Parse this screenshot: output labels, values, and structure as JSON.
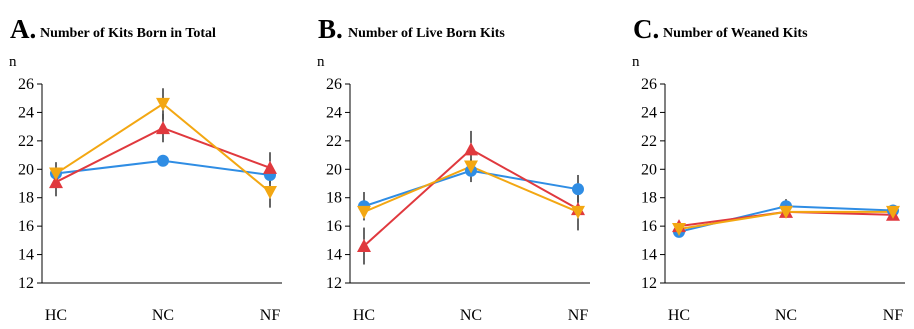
{
  "chart_data": [
    {
      "type": "line",
      "panel_letter": "A.",
      "title": "Number of Kits Born in Total",
      "ylabel": "n",
      "categories": [
        "HC",
        "NC",
        "NF"
      ],
      "yticks": [
        "12",
        "14",
        "16",
        "18",
        "20",
        "22",
        "24",
        "26"
      ],
      "ylim": [
        12,
        26
      ],
      "grid": false,
      "series": [
        {
          "marker": "circle",
          "color": "#2f8de4",
          "values": [
            19.7,
            20.6,
            19.6
          ]
        },
        {
          "marker": "triangle-up",
          "color": "#e0393e",
          "values": [
            19.1,
            22.9,
            20.1
          ],
          "error": [
            1.0,
            1.0,
            1.1
          ]
        },
        {
          "marker": "triangle-down",
          "color": "#f3a712",
          "values": [
            19.7,
            24.6,
            18.4
          ],
          "error": [
            0.8,
            1.1,
            1.1
          ]
        }
      ]
    },
    {
      "type": "line",
      "panel_letter": "B.",
      "title": "Number of Live Born Kits",
      "ylabel": "n",
      "categories": [
        "HC",
        "NC",
        "NF"
      ],
      "yticks": [
        "12",
        "14",
        "16",
        "18",
        "20",
        "22",
        "24",
        "26"
      ],
      "ylim": [
        12,
        26
      ],
      "grid": false,
      "series": [
        {
          "marker": "circle",
          "color": "#2f8de4",
          "values": [
            17.4,
            19.9,
            18.6
          ],
          "error": [
            1.0,
            0.8,
            1.0
          ]
        },
        {
          "marker": "triangle-up",
          "color": "#e0393e",
          "values": [
            14.6,
            21.4,
            17.2
          ],
          "error": [
            1.3,
            1.3,
            1.5
          ]
        },
        {
          "marker": "triangle-down",
          "color": "#f3a712",
          "values": [
            17.0,
            20.2,
            17.0
          ]
        }
      ]
    },
    {
      "type": "line",
      "panel_letter": "C.",
      "title": "Number of Weaned Kits",
      "ylabel": "n",
      "categories": [
        "HC",
        "NC",
        "NF"
      ],
      "yticks": [
        "12",
        "14",
        "16",
        "18",
        "20",
        "22",
        "24",
        "26"
      ],
      "ylim": [
        12,
        26
      ],
      "grid": false,
      "series": [
        {
          "marker": "circle",
          "color": "#2f8de4",
          "values": [
            15.6,
            17.4,
            17.1
          ],
          "error": [
            0.4,
            0.5,
            0.4
          ]
        },
        {
          "marker": "triangle-up",
          "color": "#e0393e",
          "values": [
            16.0,
            17.0,
            16.8
          ],
          "error": [
            0.3,
            0.4,
            0.4
          ]
        },
        {
          "marker": "triangle-down",
          "color": "#f3a712",
          "values": [
            15.8,
            17.0,
            17.0
          ]
        }
      ]
    }
  ]
}
